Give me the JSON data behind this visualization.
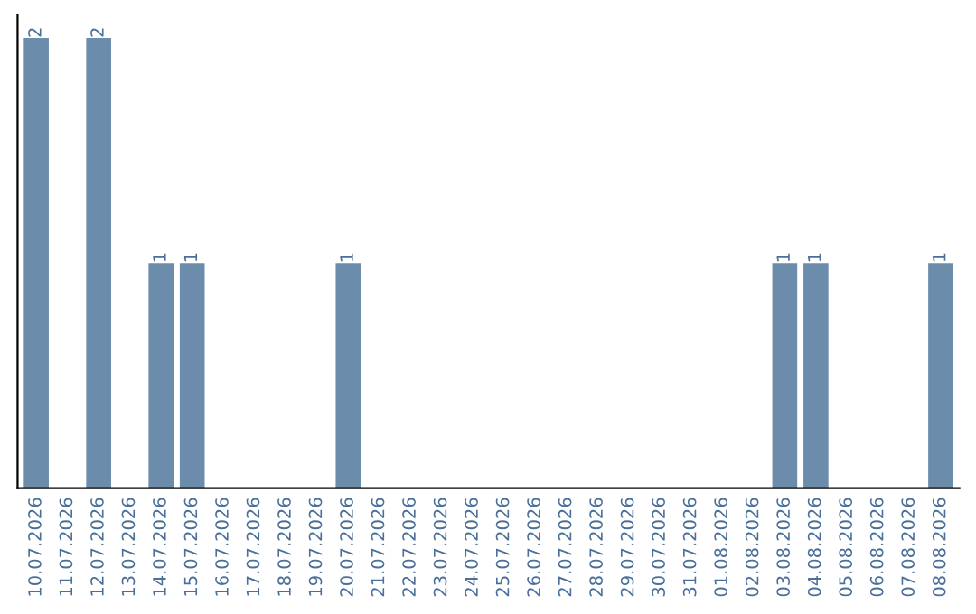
{
  "chart_data": {
    "type": "bar",
    "categories": [
      "10.07.2026",
      "11.07.2026",
      "12.07.2026",
      "13.07.2026",
      "14.07.2026",
      "15.07.2026",
      "16.07.2026",
      "17.07.2026",
      "18.07.2026",
      "19.07.2026",
      "20.07.2026",
      "21.07.2026",
      "22.07.2026",
      "23.07.2026",
      "24.07.2026",
      "25.07.2026",
      "26.07.2026",
      "27.07.2026",
      "28.07.2026",
      "29.07.2026",
      "30.07.2026",
      "31.07.2026",
      "01.08.2026",
      "02.08.2026",
      "03.08.2026",
      "04.08.2026",
      "05.08.2026",
      "06.08.2026",
      "07.08.2026",
      "08.08.2026"
    ],
    "values": [
      2,
      0,
      2,
      0,
      1,
      1,
      0,
      0,
      0,
      0,
      1,
      0,
      0,
      0,
      0,
      0,
      0,
      0,
      0,
      0,
      0,
      0,
      0,
      0,
      1,
      1,
      0,
      0,
      0,
      1
    ],
    "value_labels": [
      "2",
      null,
      "2",
      null,
      "1",
      "1",
      null,
      null,
      null,
      null,
      "1",
      null,
      null,
      null,
      null,
      null,
      null,
      null,
      null,
      null,
      null,
      null,
      null,
      null,
      "1",
      "1",
      null,
      null,
      null,
      "1"
    ],
    "color": "#6b8cab",
    "tick_labels": "x",
    "grid": false,
    "legend": false
  }
}
